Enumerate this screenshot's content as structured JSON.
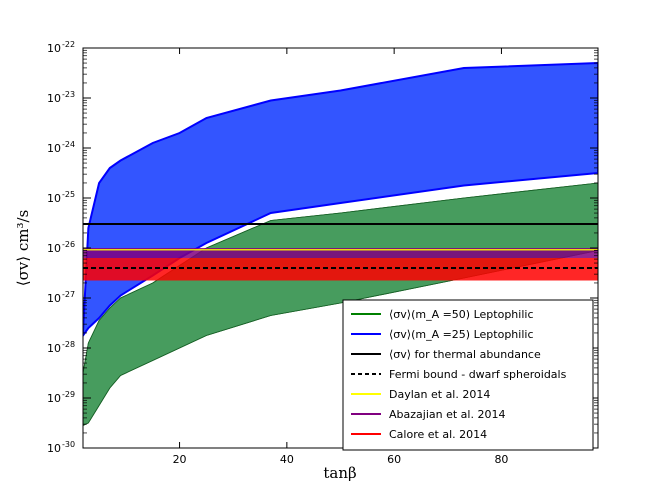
{
  "chart_data": {
    "type": "area",
    "xlabel": "tanβ",
    "ylabel": "⟨σv⟩ cm³/s",
    "xlim": [
      2,
      98
    ],
    "ylim_log10": [
      -30,
      -22
    ],
    "yscale": "log",
    "grid": false,
    "legend_position": "lower-right",
    "x_ticks": [
      20,
      40,
      60,
      80
    ],
    "x_tick_labels": [
      "20",
      "40",
      "60",
      "80"
    ],
    "y_ticks": [
      -30,
      -29,
      -28,
      -27,
      -26,
      -25,
      -24,
      -23,
      -22
    ],
    "y_tick_labels": [
      {
        "base": "10",
        "exp": "-30"
      },
      {
        "base": "10",
        "exp": "-29"
      },
      {
        "base": "10",
        "exp": "-28"
      },
      {
        "base": "10",
        "exp": "-27"
      },
      {
        "base": "10",
        "exp": "-26"
      },
      {
        "base": "10",
        "exp": "-25"
      },
      {
        "base": "10",
        "exp": "-24"
      },
      {
        "base": "10",
        "exp": "-23"
      },
      {
        "base": "10",
        "exp": "-22"
      }
    ],
    "bands": [
      {
        "name": "⟨σv⟩(m_A =50) Leptophilic",
        "legend_label": "⟨σv⟩(m_A =50) Leptophilic",
        "color": "#008000",
        "fill": "#66b266",
        "x": [
          2,
          3,
          5,
          7,
          9,
          15,
          20,
          25,
          37,
          50,
          73,
          98
        ],
        "lower": [
          -29.55,
          -29.5,
          -29.15,
          -28.8,
          -28.55,
          -28.25,
          -28.0,
          -27.75,
          -27.35,
          -27.1,
          -26.6,
          -26.05
        ],
        "upper": [
          -28.5,
          -27.9,
          -27.45,
          -27.2,
          -27.0,
          -26.7,
          -26.35,
          -26.0,
          -25.45,
          -25.3,
          -25.0,
          -24.7
        ]
      },
      {
        "name": "⟨σv⟩(m_A =25) Leptophilic",
        "legend_label": "⟨σv⟩(m_A =25) Leptophilic",
        "color": "#0000ff",
        "fill": "#3355ff",
        "x": [
          2,
          3,
          5,
          7,
          9,
          15,
          20,
          25,
          37,
          50,
          73,
          98
        ],
        "lower": [
          -27.75,
          -27.6,
          -27.4,
          -27.15,
          -26.95,
          -26.55,
          -26.2,
          -25.9,
          -25.3,
          -25.1,
          -24.75,
          -24.5
        ],
        "upper": [
          -27.7,
          -25.6,
          -24.7,
          -24.4,
          -24.25,
          -23.9,
          -23.7,
          -23.4,
          -23.05,
          -22.85,
          -22.4,
          -22.3
        ]
      }
    ],
    "horizontal_bands": [
      {
        "name": "Calore et al. 2014",
        "legend_label": "Calore et al. 2014",
        "color": "#ff0000",
        "lower": -26.65,
        "upper": -26.2
      },
      {
        "name": "Abazajian et al. 2014",
        "legend_label": "Abazajian et al. 2014",
        "color": "#800080",
        "lower": -26.2,
        "upper": -26.0
      },
      {
        "name": "Daylan et al. 2014",
        "legend_label": "Daylan et al. 2014",
        "color": "#ffff00",
        "lower": -26.05,
        "upper": -26.02
      }
    ],
    "lines": [
      {
        "name": "⟨σv⟩  for thermal abundance",
        "legend_label": "⟨σv⟩  for thermal abundance",
        "color": "#000000",
        "style": "solid",
        "y": -25.52
      },
      {
        "name": "Fermi bound - dwarf spheroidals",
        "legend_label": "Fermi bound - dwarf spheroidals",
        "color": "#000000",
        "style": "dashed",
        "y": -26.4
      }
    ],
    "legend_order": [
      {
        "label": "⟨σv⟩(m_A =50) Leptophilic",
        "color": "#008000",
        "style": "solid"
      },
      {
        "label": "⟨σv⟩(m_A =25) Leptophilic",
        "color": "#0000ff",
        "style": "solid"
      },
      {
        "label": "⟨σv⟩  for thermal abundance",
        "color": "#000000",
        "style": "solid"
      },
      {
        "label": "Fermi bound - dwarf spheroidals",
        "color": "#000000",
        "style": "dashed"
      },
      {
        "label": "Daylan et al. 2014",
        "color": "#ffff00",
        "style": "solid"
      },
      {
        "label": "Abazajian et al. 2014",
        "color": "#800080",
        "style": "solid"
      },
      {
        "label": "Calore et al. 2014",
        "color": "#ff0000",
        "style": "solid"
      }
    ]
  }
}
